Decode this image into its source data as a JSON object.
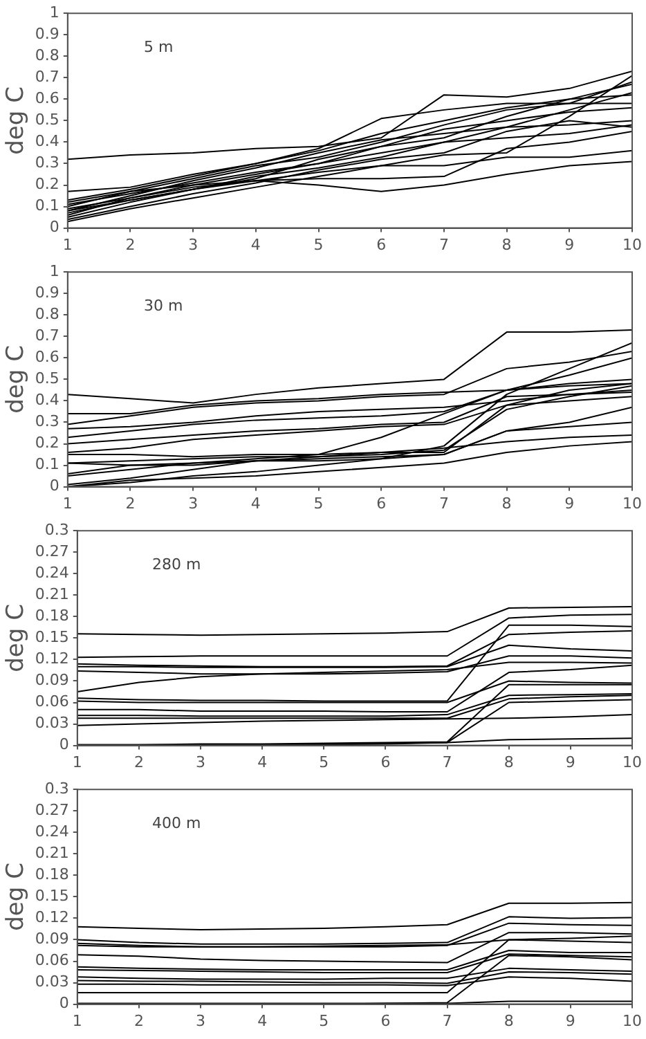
{
  "chart_data": [
    {
      "type": "line",
      "ylabel": "deg C",
      "annotations": [
        "5 m"
      ],
      "x": [
        1,
        2,
        3,
        4,
        5,
        6,
        7,
        8,
        9,
        10
      ],
      "xlim": [
        1,
        10
      ],
      "xticks": [
        1,
        2,
        3,
        4,
        5,
        6,
        7,
        8,
        9,
        10
      ],
      "ylim": [
        0,
        1
      ],
      "yticks": [
        0,
        0.1,
        0.2,
        0.3,
        0.4,
        0.5,
        0.6,
        0.7,
        0.8,
        0.9,
        1
      ],
      "grid": false,
      "legend": false,
      "marker": "none",
      "line_style": "solid",
      "series": [
        {
          "color": "#000000",
          "values": [
            0.32,
            0.34,
            0.35,
            0.37,
            0.38,
            0.42,
            0.62,
            0.61,
            0.65,
            0.73
          ]
        },
        {
          "color": "#000000",
          "values": [
            0.17,
            0.19,
            0.25,
            0.3,
            0.37,
            0.51,
            0.55,
            0.58,
            0.58,
            0.58
          ]
        },
        {
          "color": "#000000",
          "values": [
            0.13,
            0.18,
            0.24,
            0.3,
            0.36,
            0.44,
            0.5,
            0.56,
            0.6,
            0.62
          ]
        },
        {
          "color": "#000000",
          "values": [
            0.1,
            0.17,
            0.23,
            0.29,
            0.33,
            0.4,
            0.48,
            0.55,
            0.58,
            0.68
          ]
        },
        {
          "color": "#000000",
          "values": [
            0.08,
            0.15,
            0.22,
            0.28,
            0.35,
            0.41,
            0.44,
            0.47,
            0.48,
            0.5
          ]
        },
        {
          "color": "#000000",
          "values": [
            0.06,
            0.14,
            0.2,
            0.25,
            0.3,
            0.38,
            0.42,
            0.52,
            0.6,
            0.67
          ]
        },
        {
          "color": "#000000",
          "values": [
            0.05,
            0.12,
            0.18,
            0.24,
            0.28,
            0.33,
            0.4,
            0.47,
            0.55,
            0.63
          ]
        },
        {
          "color": "#000000",
          "values": [
            0.04,
            0.1,
            0.16,
            0.21,
            0.27,
            0.32,
            0.35,
            0.45,
            0.5,
            0.47
          ]
        },
        {
          "color": "#000000",
          "values": [
            0.03,
            0.09,
            0.14,
            0.19,
            0.24,
            0.29,
            0.34,
            0.35,
            0.52,
            0.71
          ]
        },
        {
          "color": "#000000",
          "values": [
            0.12,
            0.17,
            0.2,
            0.22,
            0.2,
            0.17,
            0.2,
            0.25,
            0.29,
            0.31
          ]
        },
        {
          "color": "#000000",
          "values": [
            0.09,
            0.14,
            0.19,
            0.22,
            0.23,
            0.23,
            0.24,
            0.37,
            0.4,
            0.45
          ]
        },
        {
          "color": "#000000",
          "values": [
            0.11,
            0.16,
            0.21,
            0.26,
            0.3,
            0.35,
            0.4,
            0.42,
            0.44,
            0.48
          ]
        },
        {
          "color": "#000000",
          "values": [
            0.07,
            0.13,
            0.18,
            0.22,
            0.26,
            0.29,
            0.29,
            0.33,
            0.33,
            0.36
          ]
        },
        {
          "color": "#000000",
          "values": [
            0.08,
            0.13,
            0.18,
            0.23,
            0.32,
            0.38,
            0.46,
            0.5,
            0.54,
            0.56
          ]
        }
      ]
    },
    {
      "type": "line",
      "ylabel": "deg C",
      "annotations": [
        "30 m"
      ],
      "x": [
        1,
        2,
        3,
        4,
        5,
        6,
        7,
        8,
        9,
        10
      ],
      "xlim": [
        1,
        10
      ],
      "xticks": [
        1,
        2,
        3,
        4,
        5,
        6,
        7,
        8,
        9,
        10
      ],
      "ylim": [
        0,
        1
      ],
      "yticks": [
        0,
        0.1,
        0.2,
        0.3,
        0.4,
        0.5,
        0.6,
        0.7,
        0.8,
        0.9,
        1
      ],
      "grid": false,
      "legend": false,
      "marker": "none",
      "line_style": "solid",
      "series": [
        {
          "color": "#000000",
          "values": [
            0.43,
            0.41,
            0.39,
            0.43,
            0.46,
            0.48,
            0.5,
            0.72,
            0.72,
            0.73
          ]
        },
        {
          "color": "#000000",
          "values": [
            0.34,
            0.34,
            0.38,
            0.4,
            0.41,
            0.43,
            0.44,
            0.45,
            0.48,
            0.5
          ]
        },
        {
          "color": "#000000",
          "values": [
            0.29,
            0.33,
            0.37,
            0.39,
            0.4,
            0.42,
            0.43,
            0.55,
            0.58,
            0.63
          ]
        },
        {
          "color": "#000000",
          "values": [
            0.27,
            0.28,
            0.3,
            0.33,
            0.35,
            0.36,
            0.37,
            0.4,
            0.43,
            0.45
          ]
        },
        {
          "color": "#000000",
          "values": [
            0.23,
            0.26,
            0.29,
            0.31,
            0.32,
            0.33,
            0.35,
            0.45,
            0.47,
            0.48
          ]
        },
        {
          "color": "#000000",
          "values": [
            0.2,
            0.22,
            0.24,
            0.26,
            0.27,
            0.29,
            0.3,
            0.42,
            0.43,
            0.44
          ]
        },
        {
          "color": "#000000",
          "values": [
            0.16,
            0.18,
            0.22,
            0.24,
            0.26,
            0.28,
            0.29,
            0.38,
            0.4,
            0.42
          ]
        },
        {
          "color": "#000000",
          "values": [
            0.15,
            0.15,
            0.14,
            0.15,
            0.15,
            0.16,
            0.16,
            0.38,
            0.45,
            0.48
          ]
        },
        {
          "color": "#000000",
          "values": [
            0.11,
            0.12,
            0.13,
            0.14,
            0.14,
            0.15,
            0.17,
            0.36,
            0.42,
            0.47
          ]
        },
        {
          "color": "#000000",
          "values": [
            0.11,
            0.1,
            0.1,
            0.12,
            0.13,
            0.14,
            0.15,
            0.26,
            0.28,
            0.3
          ]
        },
        {
          "color": "#000000",
          "values": [
            0.05,
            0.08,
            0.11,
            0.13,
            0.15,
            0.23,
            0.34,
            0.45,
            0.52,
            0.6
          ]
        },
        {
          "color": "#000000",
          "values": [
            0.01,
            0.04,
            0.08,
            0.12,
            0.14,
            0.16,
            0.18,
            0.21,
            0.23,
            0.24
          ]
        },
        {
          "color": "#000000",
          "values": [
            0.0,
            0.02,
            0.05,
            0.07,
            0.1,
            0.13,
            0.15,
            0.26,
            0.3,
            0.37
          ]
        },
        {
          "color": "#000000",
          "values": [
            0.0,
            0.03,
            0.04,
            0.05,
            0.07,
            0.09,
            0.11,
            0.16,
            0.19,
            0.21
          ]
        },
        {
          "color": "#000000",
          "values": [
            0.06,
            0.1,
            0.11,
            0.12,
            0.12,
            0.13,
            0.19,
            0.43,
            0.55,
            0.67
          ]
        }
      ]
    },
    {
      "type": "line",
      "ylabel": "deg C",
      "annotations": [
        "280 m"
      ],
      "x": [
        1,
        2,
        3,
        4,
        5,
        6,
        7,
        8,
        9,
        10
      ],
      "xlim": [
        1,
        10
      ],
      "xticks": [
        1,
        2,
        3,
        4,
        5,
        6,
        7,
        8,
        9,
        10
      ],
      "ylim": [
        0,
        0.3
      ],
      "yticks": [
        0,
        0.03,
        0.06,
        0.09,
        0.12,
        0.15,
        0.18,
        0.21,
        0.24,
        0.27,
        0.3
      ],
      "grid": false,
      "legend": false,
      "marker": "none",
      "line_style": "solid",
      "series": [
        {
          "color": "#000000",
          "values": [
            0.156,
            0.155,
            0.154,
            0.155,
            0.156,
            0.157,
            0.159,
            0.192,
            0.193,
            0.194
          ]
        },
        {
          "color": "#000000",
          "values": [
            0.123,
            0.124,
            0.125,
            0.125,
            0.125,
            0.125,
            0.125,
            0.178,
            0.182,
            0.183
          ]
        },
        {
          "color": "#000000",
          "values": [
            0.114,
            0.112,
            0.111,
            0.11,
            0.11,
            0.11,
            0.111,
            0.155,
            0.158,
            0.16
          ]
        },
        {
          "color": "#000000",
          "values": [
            0.11,
            0.11,
            0.109,
            0.109,
            0.109,
            0.109,
            0.11,
            0.14,
            0.135,
            0.132
          ]
        },
        {
          "color": "#000000",
          "values": [
            0.104,
            0.102,
            0.1,
            0.1,
            0.1,
            0.101,
            0.103,
            0.125,
            0.125,
            0.122
          ]
        },
        {
          "color": "#000000",
          "values": [
            0.075,
            0.088,
            0.096,
            0.1,
            0.102,
            0.104,
            0.106,
            0.116,
            0.116,
            0.115
          ]
        },
        {
          "color": "#000000",
          "values": [
            0.066,
            0.064,
            0.063,
            0.063,
            0.062,
            0.062,
            0.062,
            0.168,
            0.168,
            0.166
          ]
        },
        {
          "color": "#000000",
          "values": [
            0.062,
            0.06,
            0.06,
            0.06,
            0.06,
            0.06,
            0.06,
            0.09,
            0.088,
            0.087
          ]
        },
        {
          "color": "#000000",
          "values": [
            0.05,
            0.05,
            0.048,
            0.048,
            0.048,
            0.047,
            0.047,
            0.102,
            0.106,
            0.112
          ]
        },
        {
          "color": "#000000",
          "values": [
            0.042,
            0.042,
            0.041,
            0.041,
            0.041,
            0.041,
            0.043,
            0.07,
            0.071,
            0.072
          ]
        },
        {
          "color": "#000000",
          "values": [
            0.038,
            0.038,
            0.038,
            0.038,
            0.038,
            0.038,
            0.038,
            0.065,
            0.068,
            0.07
          ]
        },
        {
          "color": "#000000",
          "values": [
            0.028,
            0.03,
            0.032,
            0.034,
            0.035,
            0.036,
            0.037,
            0.038,
            0.04,
            0.043
          ]
        },
        {
          "color": "#000000",
          "values": [
            0.001,
            0.001,
            0.002,
            0.002,
            0.003,
            0.004,
            0.005,
            0.085,
            0.085,
            0.085
          ]
        },
        {
          "color": "#000000",
          "values": [
            0.0,
            0.0,
            0.001,
            0.001,
            0.002,
            0.003,
            0.004,
            0.06,
            0.062,
            0.064
          ]
        },
        {
          "color": "#000000",
          "values": [
            0.0,
            0.0,
            0.0,
            0.001,
            0.001,
            0.002,
            0.004,
            0.008,
            0.009,
            0.01
          ]
        }
      ]
    },
    {
      "type": "line",
      "ylabel": "deg C",
      "annotations": [
        "400 m"
      ],
      "x": [
        1,
        2,
        3,
        4,
        5,
        6,
        7,
        8,
        9,
        10
      ],
      "xlim": [
        1,
        10
      ],
      "xticks": [
        1,
        2,
        3,
        4,
        5,
        6,
        7,
        8,
        9,
        10
      ],
      "ylim": [
        0,
        0.3
      ],
      "yticks": [
        0,
        0.03,
        0.06,
        0.09,
        0.12,
        0.15,
        0.18,
        0.21,
        0.24,
        0.27,
        0.3
      ],
      "grid": false,
      "legend": false,
      "marker": "none",
      "line_style": "solid",
      "series": [
        {
          "color": "#000000",
          "values": [
            0.108,
            0.106,
            0.104,
            0.105,
            0.106,
            0.108,
            0.111,
            0.141,
            0.141,
            0.142
          ]
        },
        {
          "color": "#000000",
          "values": [
            0.09,
            0.086,
            0.084,
            0.084,
            0.084,
            0.085,
            0.086,
            0.122,
            0.12,
            0.121
          ]
        },
        {
          "color": "#000000",
          "values": [
            0.085,
            0.082,
            0.08,
            0.08,
            0.08,
            0.08,
            0.082,
            0.113,
            0.111,
            0.11
          ]
        },
        {
          "color": "#000000",
          "values": [
            0.082,
            0.08,
            0.08,
            0.08,
            0.081,
            0.082,
            0.083,
            0.09,
            0.088,
            0.086
          ]
        },
        {
          "color": "#000000",
          "values": [
            0.069,
            0.067,
            0.063,
            0.061,
            0.06,
            0.059,
            0.058,
            0.1,
            0.1,
            0.098
          ]
        },
        {
          "color": "#000000",
          "values": [
            0.052,
            0.05,
            0.049,
            0.048,
            0.048,
            0.048,
            0.048,
            0.075,
            0.072,
            0.072
          ]
        },
        {
          "color": "#000000",
          "values": [
            0.048,
            0.047,
            0.046,
            0.045,
            0.044,
            0.044,
            0.044,
            0.07,
            0.068,
            0.066
          ]
        },
        {
          "color": "#000000",
          "values": [
            0.038,
            0.036,
            0.035,
            0.035,
            0.035,
            0.036,
            0.036,
            0.05,
            0.048,
            0.046
          ]
        },
        {
          "color": "#000000",
          "values": [
            0.033,
            0.032,
            0.032,
            0.031,
            0.03,
            0.03,
            0.029,
            0.045,
            0.044,
            0.042
          ]
        },
        {
          "color": "#000000",
          "values": [
            0.028,
            0.028,
            0.027,
            0.027,
            0.027,
            0.027,
            0.026,
            0.038,
            0.036,
            0.032
          ]
        },
        {
          "color": "#000000",
          "values": [
            0.016,
            0.016,
            0.016,
            0.016,
            0.016,
            0.016,
            0.016,
            0.09,
            0.092,
            0.095
          ]
        },
        {
          "color": "#000000",
          "values": [
            0.001,
            0.001,
            0.001,
            0.001,
            0.001,
            0.001,
            0.002,
            0.068,
            0.066,
            0.062
          ]
        },
        {
          "color": "#000000",
          "values": [
            0.0,
            0.0,
            0.0,
            0.0,
            0.0,
            0.001,
            0.001,
            0.004,
            0.004,
            0.004
          ]
        }
      ]
    }
  ]
}
